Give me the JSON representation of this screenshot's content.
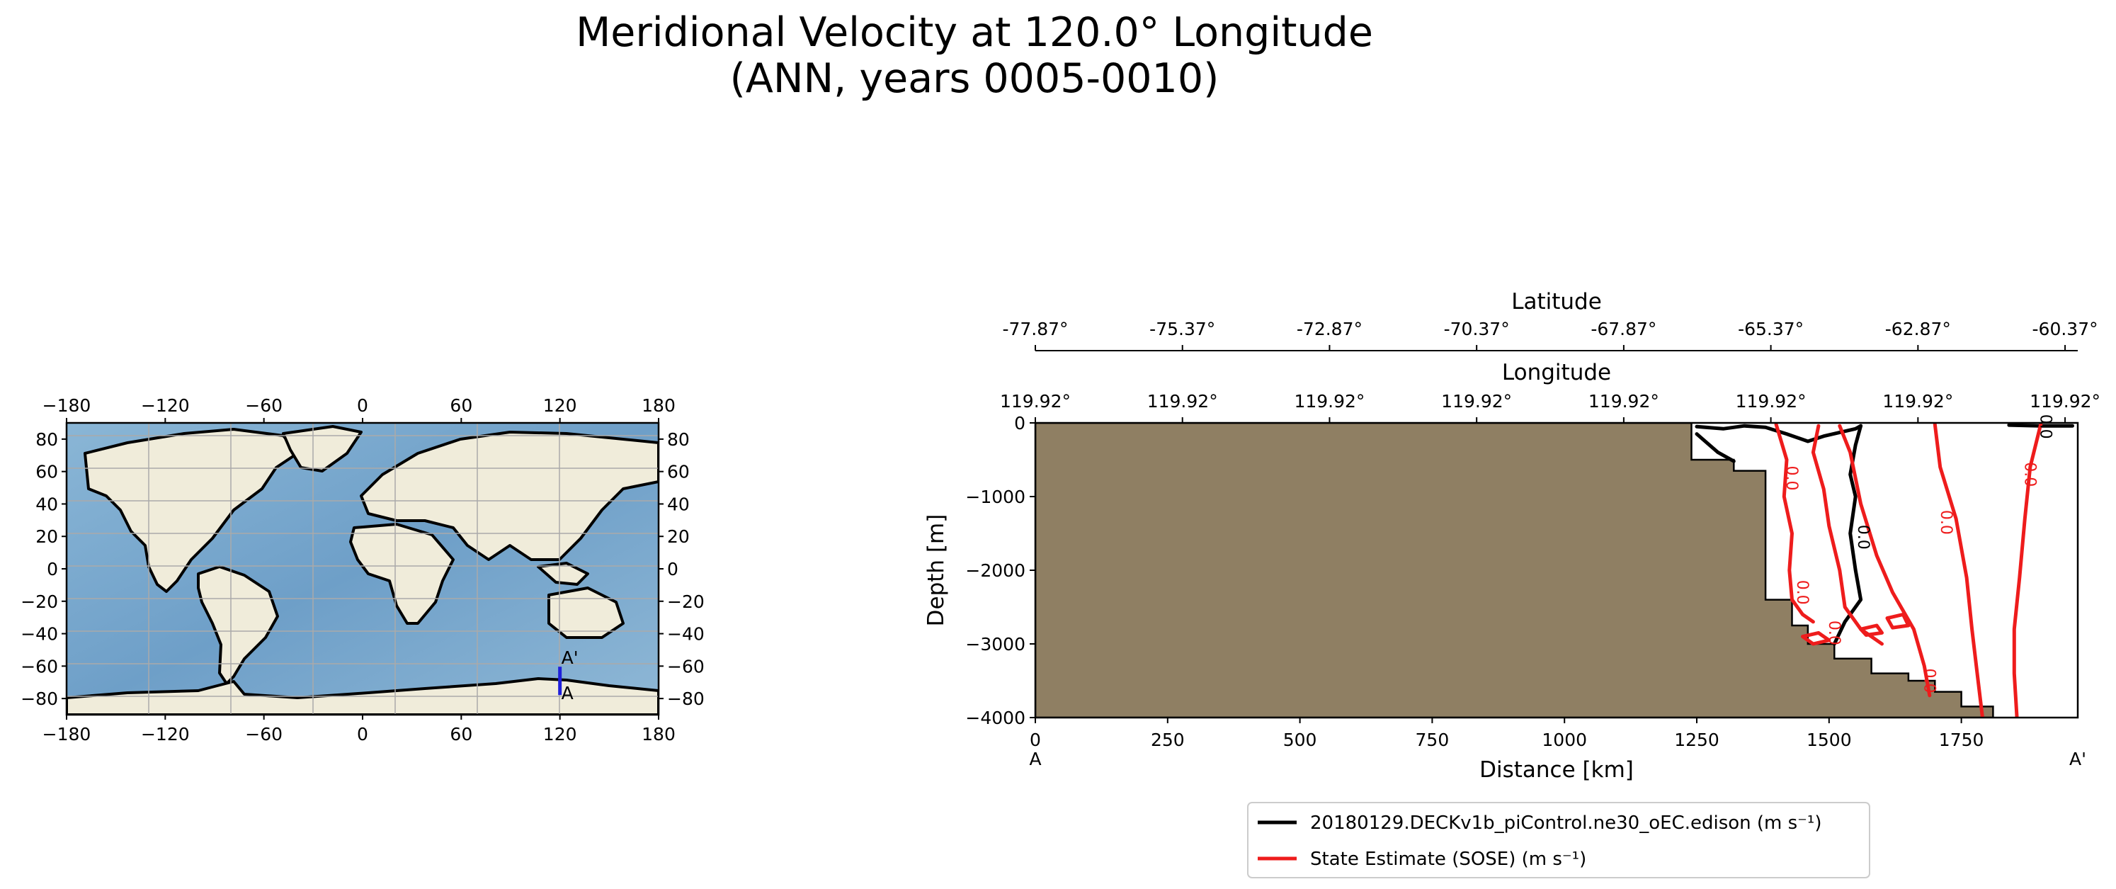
{
  "title": {
    "line1": "Meridional Velocity at 120.0° Longitude",
    "line2": "(ANN, years 0005-0010)"
  },
  "colors": {
    "land": "#f0ecda",
    "ocean": "#7aa9cc",
    "ocean_deep": "#5f93bf",
    "bathymetry": "#8f7f63",
    "model_line": "#000000",
    "obs_line": "#ee1c1c",
    "transect": "#1f1fdb",
    "grid": "#aaaaaa"
  },
  "chart_data": [
    {
      "type": "map",
      "name": "transect location map",
      "projection": "plate carree",
      "xlim": [
        -180,
        180
      ],
      "ylim": [
        -90,
        90
      ],
      "x_ticks": [
        "−180",
        "−120",
        "−60",
        "0",
        "60",
        "120",
        "180"
      ],
      "y_ticks": [
        "80",
        "60",
        "40",
        "20",
        "0",
        "−20",
        "−40",
        "−60",
        "−80"
      ],
      "x_tick_values": [
        -180,
        -120,
        -60,
        0,
        60,
        120,
        180
      ],
      "y_tick_values": [
        80,
        60,
        40,
        20,
        0,
        -20,
        -40,
        -60,
        -80
      ],
      "transect": {
        "lon": 120,
        "lat_start": -77.87,
        "lat_end": -60.37
      },
      "transect_labels": {
        "start": "A",
        "end": "A'"
      }
    },
    {
      "type": "contour",
      "name": "meridional velocity transect",
      "xlabel": "Distance [km]",
      "ylabel": "Depth [m]",
      "xlim": [
        0,
        1970
      ],
      "ylim": [
        -4000,
        0
      ],
      "x_ticks": [
        0,
        250,
        500,
        750,
        1000,
        1250,
        1500,
        1750
      ],
      "y_ticks": [
        0,
        -1000,
        -2000,
        -3000,
        -4000
      ],
      "y_tick_labels": [
        "0",
        "−1000",
        "−2000",
        "−3000",
        "−4000"
      ],
      "endpoints": {
        "start": "A",
        "end": "A'"
      },
      "latitude_axis": {
        "label": "Latitude",
        "ticks": [
          "-77.87°",
          "-75.37°",
          "-72.87°",
          "-70.37°",
          "-67.87°",
          "-65.37°",
          "-62.87°",
          "-60.37°"
        ],
        "tick_km": [
          0,
          278,
          556,
          834,
          1112,
          1390,
          1668,
          1946
        ]
      },
      "longitude_axis": {
        "label": "Longitude",
        "ticks": [
          "119.92°",
          "119.92°",
          "119.92°",
          "119.92°",
          "119.92°",
          "119.92°",
          "119.92°",
          "119.92°"
        ],
        "tick_km": [
          0,
          278,
          556,
          834,
          1112,
          1390,
          1668,
          1946
        ]
      },
      "bathymetry_outline": [
        [
          0,
          0
        ],
        [
          1240,
          0
        ],
        [
          1240,
          -500
        ],
        [
          1320,
          -500
        ],
        [
          1320,
          -650
        ],
        [
          1380,
          -650
        ],
        [
          1380,
          -2400
        ],
        [
          1430,
          -2400
        ],
        [
          1430,
          -2750
        ],
        [
          1460,
          -2750
        ],
        [
          1460,
          -3000
        ],
        [
          1510,
          -3000
        ],
        [
          1510,
          -3200
        ],
        [
          1580,
          -3200
        ],
        [
          1580,
          -3400
        ],
        [
          1650,
          -3400
        ],
        [
          1650,
          -3500
        ],
        [
          1700,
          -3500
        ],
        [
          1700,
          -3650
        ],
        [
          1750,
          -3650
        ],
        [
          1750,
          -3850
        ],
        [
          1810,
          -3850
        ],
        [
          1810,
          -4000
        ],
        [
          0,
          -4000
        ]
      ],
      "contour_level": 0.0,
      "contour_label": "0.0",
      "series": [
        {
          "name": "20180129.DECKv1b_piControl.ne30_oEC.edison (m s⁻¹)",
          "color": "#000000",
          "contours": [
            [
              [
                1250,
                -50
              ],
              [
                1300,
                -80
              ],
              [
                1340,
                -40
              ],
              [
                1380,
                -60
              ],
              [
                1420,
                -150
              ],
              [
                1460,
                -250
              ],
              [
                1490,
                -180
              ],
              [
                1550,
                -80
              ],
              [
                1560,
                -40
              ]
            ],
            [
              [
                1560,
                -40
              ],
              [
                1550,
                -300
              ],
              [
                1540,
                -700
              ],
              [
                1550,
                -1000
              ],
              [
                1540,
                -1500
              ],
              [
                1550,
                -2000
              ],
              [
                1560,
                -2400
              ],
              [
                1530,
                -2700
              ],
              [
                1510,
                -3000
              ]
            ],
            [
              [
                1250,
                -150
              ],
              [
                1290,
                -400
              ],
              [
                1320,
                -520
              ]
            ],
            [
              [
                1840,
                -30
              ],
              [
                1900,
                -40
              ],
              [
                1960,
                -40
              ]
            ]
          ]
        },
        {
          "name": "State Estimate (SOSE) (m s⁻¹)",
          "color": "#ee1c1c",
          "contours": [
            [
              [
                1400,
                -20
              ],
              [
                1420,
                -500
              ],
              [
                1415,
                -1000
              ],
              [
                1430,
                -1500
              ],
              [
                1425,
                -2000
              ],
              [
                1430,
                -2400
              ],
              [
                1450,
                -2600
              ],
              [
                1470,
                -2700
              ]
            ],
            [
              [
                1480,
                -40
              ],
              [
                1470,
                -400
              ],
              [
                1490,
                -900
              ],
              [
                1500,
                -1400
              ],
              [
                1520,
                -2000
              ],
              [
                1530,
                -2500
              ],
              [
                1560,
                -2800
              ],
              [
                1600,
                -3000
              ]
            ],
            [
              [
                1520,
                -40
              ],
              [
                1540,
                -400
              ],
              [
                1560,
                -1100
              ],
              [
                1590,
                -1800
              ],
              [
                1620,
                -2300
              ],
              [
                1660,
                -2800
              ],
              [
                1680,
                -3300
              ],
              [
                1690,
                -3700
              ]
            ],
            [
              [
                1700,
                -20
              ],
              [
                1710,
                -600
              ],
              [
                1740,
                -1300
              ],
              [
                1760,
                -2100
              ],
              [
                1770,
                -2800
              ],
              [
                1780,
                -3400
              ],
              [
                1790,
                -4000
              ]
            ],
            [
              [
                1900,
                -20
              ],
              [
                1880,
                -600
              ],
              [
                1870,
                -1300
              ],
              [
                1860,
                -2100
              ],
              [
                1850,
                -2800
              ],
              [
                1850,
                -3400
              ],
              [
                1855,
                -4000
              ]
            ],
            [
              [
                1450,
                -2900
              ],
              [
                1480,
                -2850
              ],
              [
                1500,
                -2950
              ],
              [
                1470,
                -3000
              ],
              [
                1450,
                -2900
              ]
            ],
            [
              [
                1560,
                -2800
              ],
              [
                1590,
                -2750
              ],
              [
                1600,
                -2850
              ],
              [
                1570,
                -2880
              ],
              [
                1560,
                -2800
              ]
            ],
            [
              [
                1610,
                -2650
              ],
              [
                1640,
                -2600
              ],
              [
                1650,
                -2750
              ],
              [
                1620,
                -2780
              ],
              [
                1610,
                -2650
              ]
            ]
          ]
        }
      ],
      "legend_position": "bottom-center"
    }
  ]
}
